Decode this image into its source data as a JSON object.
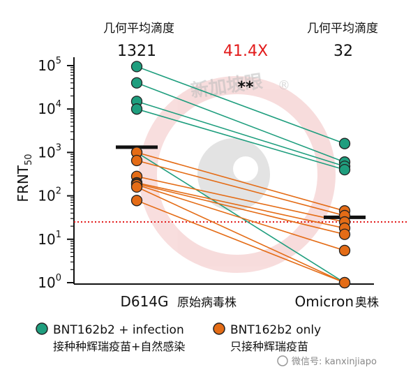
{
  "chart_data": {
    "type": "scatter",
    "ylabel": "FRNT",
    "ylabel_sub": "50",
    "yscale": "log",
    "ylim": [
      1,
      100000
    ],
    "yticks": [
      {
        "base": "10",
        "exp": "0"
      },
      {
        "base": "10",
        "exp": "1"
      },
      {
        "base": "10",
        "exp": "2"
      },
      {
        "base": "10",
        "exp": "3"
      },
      {
        "base": "10",
        "exp": "4"
      },
      {
        "base": "10",
        "exp": "5"
      }
    ],
    "categories": [
      "D614G",
      "Omicron"
    ],
    "category_sublabels": [
      "原始病毒株",
      "奥株"
    ],
    "gmt_header_left": "几何平均滴度",
    "gmt_header_right": "几何平均滴度",
    "gmt_values": [
      1321,
      32
    ],
    "gmt_value_labels": [
      "1321",
      "32"
    ],
    "fold_change_label": "41.4X",
    "significance": "**",
    "limit_of_detection": 25,
    "series": [
      {
        "name": "BNT162b2 + infection",
        "sublabel": "接种种辉瑞疫苗+自然感染",
        "color": "#1f9e7e",
        "pairs": [
          [
            95000,
            1600
          ],
          [
            40000,
            600
          ],
          [
            15000,
            480
          ],
          [
            10000,
            400
          ],
          [
            1000,
            1
          ]
        ]
      },
      {
        "name": "BNT162b2 only",
        "sublabel": "只接种辉瑞疫苗",
        "color": "#e46c16",
        "pairs": [
          [
            1000,
            45
          ],
          [
            650,
            35
          ],
          [
            280,
            25
          ],
          [
            200,
            18
          ],
          [
            190,
            13
          ],
          [
            180,
            5.5
          ],
          [
            160,
            1
          ],
          [
            78,
            1
          ]
        ]
      }
    ]
  },
  "watermark": {
    "brand": "新加坡眼",
    "registered": "®",
    "wechat": "微信号: kanxinjiapo"
  }
}
